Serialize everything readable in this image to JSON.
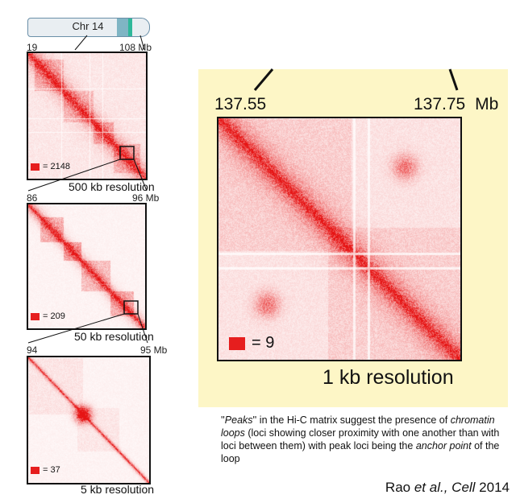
{
  "chromosome": {
    "label": "Chr 14"
  },
  "panels": [
    {
      "left_tick": "19",
      "right_tick": "108 Mb",
      "legend_value": "= 2148",
      "resolution": "500 kb resolution"
    },
    {
      "left_tick": "86",
      "right_tick": "96 Mb",
      "legend_value": "= 209",
      "resolution": "50 kb resolution"
    },
    {
      "left_tick": "94",
      "right_tick": "95 Mb",
      "legend_value": "= 37",
      "resolution": "5 kb resolution"
    }
  ],
  "zoom": {
    "left_tick": "137.55",
    "right_tick": "137.75",
    "unit": "Mb",
    "legend_value": "= 9",
    "resolution": "1 kb resolution"
  },
  "caption": {
    "q_open": "''",
    "peaks": "Peaks",
    "q_close": "''",
    "t1": " in the Hi-C matrix suggest the presence of ",
    "chromatin_loops": "chromatin loops",
    "t2": " (loci showing closer proximity with one another than with loci between them) with peak loci being the ",
    "anchor_point": "anchor point",
    "t3": " of the loop"
  },
  "citation": {
    "authors": "Rao ",
    "etal": "et al.,",
    "journal": " Cell",
    "year": " 2014"
  },
  "colors": {
    "heat": "#e61e1e",
    "highlight_bg": "#fdf6c6",
    "chrom_band": "#2fb89a"
  }
}
